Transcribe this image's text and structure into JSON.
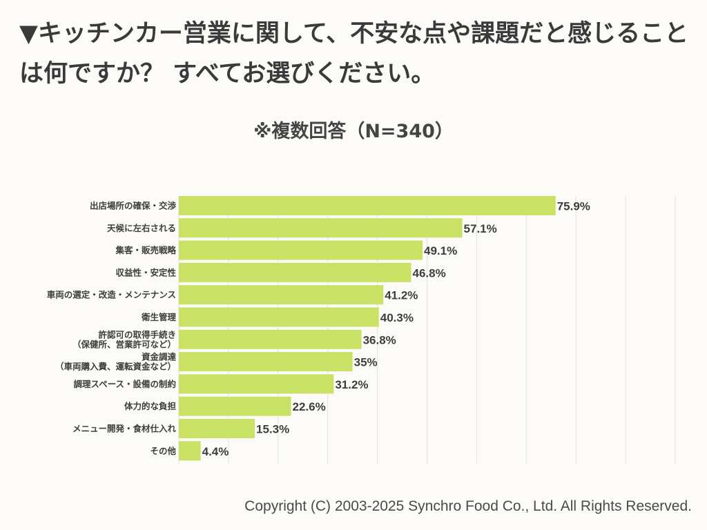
{
  "title": "▼キッチンカー営業に関して、不安な点や課題だと感じることは何ですか？ すべてお選びください。",
  "subtitle": "※複数回答（N=340）",
  "copyright": "Copyright (C) 2003-2025  Synchro Food Co., Ltd. All Rights Reserved.",
  "colors": {
    "bar": "#c9e265",
    "grid": "#e2e2e2",
    "text": "#3d3d3d"
  },
  "chart_data": {
    "type": "bar",
    "orientation": "horizontal",
    "grid": true,
    "xlim": [
      0,
      100
    ],
    "categories": [
      "出店場所の確保・交渉",
      "天候に左右される",
      "集客・販売戦略",
      "収益性・安定性",
      "車両の選定・改造・メンテナンス",
      "衛生管理",
      "許認可の取得手続き\n（保健所、営業許可など）",
      "資金調達\n（車両購入費、運転資金など）",
      "調理スペース・設備の制約",
      "体力的な負担",
      "メニュー開発・食材仕入れ",
      "その他"
    ],
    "values": [
      75.9,
      57.1,
      49.1,
      46.8,
      41.2,
      40.3,
      36.8,
      35,
      31.2,
      22.6,
      15.3,
      4.4
    ],
    "value_labels": [
      "75.9%",
      "57.1%",
      "49.1%",
      "46.8%",
      "41.2%",
      "40.3%",
      "36.8%",
      "35%",
      "31.2%",
      "22.6%",
      "15.3%",
      "4.4%"
    ]
  }
}
